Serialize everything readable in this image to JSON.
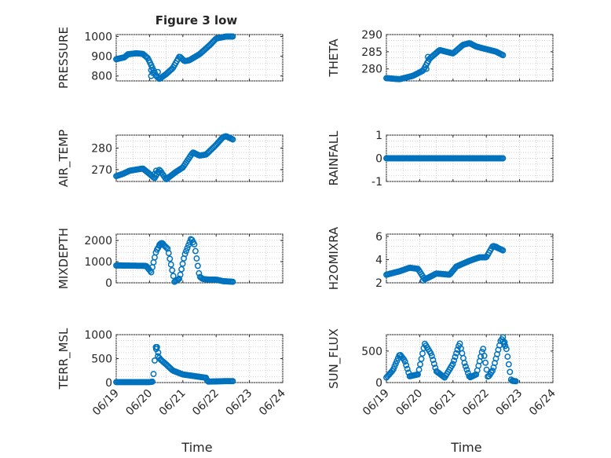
{
  "figure": {
    "title": "Figure 3 low",
    "marker_color": "#0072bd",
    "x_tick_labels": [
      "06/19",
      "06/20",
      "06/21",
      "06/22",
      "06/23",
      "06/24"
    ],
    "x_label": "Time"
  },
  "chart_data": [
    {
      "type": "scatter",
      "ylabel": "PRESSURE",
      "ylim": [
        775,
        1010
      ],
      "yticks": [
        800,
        900,
        1000
      ],
      "grid": true,
      "knots": [
        [
          0,
          885
        ],
        [
          0.25,
          895
        ],
        [
          0.35,
          910
        ],
        [
          0.6,
          915
        ],
        [
          0.8,
          912
        ],
        [
          0.95,
          890
        ],
        [
          1.05,
          855
        ],
        [
          1.2,
          800
        ],
        [
          1.3,
          785
        ],
        [
          1.5,
          810
        ],
        [
          1.7,
          840
        ],
        [
          1.9,
          900
        ],
        [
          2.05,
          875
        ],
        [
          2.2,
          880
        ],
        [
          2.5,
          910
        ],
        [
          2.8,
          955
        ],
        [
          3.0,
          990
        ],
        [
          3.3,
          1000
        ],
        [
          3.5,
          1000
        ]
      ],
      "extra": [
        [
          1.05,
          830
        ],
        [
          1.1,
          815
        ],
        [
          1.25,
          820
        ],
        [
          1.05,
          800
        ]
      ]
    },
    {
      "type": "scatter",
      "ylabel": "THETA",
      "ylim": [
        276.5,
        290
      ],
      "yticks": [
        280,
        285,
        290
      ],
      "grid": true,
      "knots": [
        [
          0,
          277.3
        ],
        [
          0.4,
          277
        ],
        [
          0.8,
          278
        ],
        [
          1.1,
          279.5
        ],
        [
          1.3,
          283
        ],
        [
          1.6,
          285.5
        ],
        [
          2.0,
          284.5
        ],
        [
          2.3,
          287
        ],
        [
          2.5,
          287.5
        ],
        [
          2.7,
          286.5
        ],
        [
          3.3,
          285
        ],
        [
          3.5,
          284
        ]
      ],
      "extra": [
        [
          1.2,
          280
        ],
        [
          1.25,
          283.5
        ]
      ]
    },
    {
      "type": "scatter",
      "ylabel": "AIR_TEMP",
      "ylim": [
        264.5,
        286
      ],
      "yticks": [
        270,
        280
      ],
      "grid": true,
      "knots": [
        [
          0,
          267
        ],
        [
          0.2,
          268
        ],
        [
          0.4,
          269.5
        ],
        [
          0.8,
          270.5
        ],
        [
          1.0,
          268
        ],
        [
          1.15,
          266
        ],
        [
          1.3,
          270
        ],
        [
          1.5,
          265.5
        ],
        [
          1.8,
          269
        ],
        [
          2.0,
          271
        ],
        [
          2.3,
          278
        ],
        [
          2.5,
          276.5
        ],
        [
          2.7,
          277
        ],
        [
          3.0,
          281.5
        ],
        [
          3.2,
          285
        ],
        [
          3.3,
          285.5
        ],
        [
          3.5,
          284
        ]
      ],
      "extra": [
        [
          1.15,
          268
        ],
        [
          1.2,
          269.5
        ]
      ]
    },
    {
      "type": "scatter",
      "ylabel": "RAINFALL",
      "ylim": [
        -1,
        1
      ],
      "yticks": [
        -1,
        0,
        1
      ],
      "grid": true,
      "knots": [
        [
          0,
          0
        ],
        [
          3.5,
          0
        ]
      ],
      "extra": []
    },
    {
      "type": "scatter",
      "ylabel": "MIXDEPTH",
      "ylim": [
        0,
        2300
      ],
      "yticks": [
        0,
        1000,
        2000
      ],
      "grid": true,
      "knots": [
        [
          0,
          820
        ],
        [
          0.9,
          800
        ],
        [
          1.05,
          500
        ],
        [
          1.2,
          1500
        ],
        [
          1.35,
          1900
        ],
        [
          1.55,
          1600
        ],
        [
          1.75,
          50
        ],
        [
          1.9,
          200
        ],
        [
          2.05,
          1300
        ],
        [
          2.25,
          2100
        ],
        [
          2.35,
          1800
        ],
        [
          2.5,
          300
        ],
        [
          2.6,
          180
        ],
        [
          2.8,
          150
        ],
        [
          3.0,
          150
        ],
        [
          3.2,
          80
        ],
        [
          3.5,
          50
        ]
      ],
      "extra": [
        [
          1.3,
          1800
        ],
        [
          1.4,
          1850
        ]
      ]
    },
    {
      "type": "scatter",
      "ylabel": "H2OMIXRA",
      "ylim": [
        2,
        6.2
      ],
      "yticks": [
        2,
        4,
        6
      ],
      "grid": true,
      "knots": [
        [
          0,
          2.7
        ],
        [
          0.4,
          3.0
        ],
        [
          0.7,
          3.3
        ],
        [
          0.95,
          3.2
        ],
        [
          1.15,
          2.3
        ],
        [
          1.3,
          2.5
        ],
        [
          1.5,
          2.8
        ],
        [
          1.9,
          2.7
        ],
        [
          2.1,
          3.4
        ],
        [
          2.5,
          3.9
        ],
        [
          2.8,
          4.2
        ],
        [
          3.0,
          4.2
        ],
        [
          3.2,
          5.2
        ],
        [
          3.35,
          5.0
        ],
        [
          3.5,
          4.8
        ]
      ],
      "extra": [
        [
          1.1,
          2.2
        ],
        [
          3.3,
          5.1
        ]
      ]
    },
    {
      "type": "scatter",
      "ylabel": "TERR_MSL",
      "ylim": [
        0,
        1000
      ],
      "yticks": [
        0,
        500,
        1000
      ],
      "grid": true,
      "knots": [
        [
          0,
          10
        ],
        [
          1.0,
          10
        ],
        [
          1.1,
          20
        ],
        [
          1.2,
          820
        ],
        [
          1.3,
          500
        ],
        [
          1.5,
          380
        ],
        [
          1.7,
          250
        ],
        [
          2.0,
          170
        ],
        [
          2.5,
          120
        ],
        [
          2.7,
          100
        ],
        [
          2.75,
          20
        ],
        [
          3.3,
          30
        ],
        [
          3.5,
          30
        ]
      ],
      "extra": [
        [
          1.2,
          700
        ],
        [
          1.25,
          550
        ]
      ]
    },
    {
      "type": "scatter",
      "ylabel": "SUN_FLUX",
      "ylim": [
        0,
        760
      ],
      "yticks": [
        0,
        500
      ],
      "grid": true,
      "knots": [
        [
          0,
          80
        ],
        [
          0.2,
          200
        ],
        [
          0.4,
          450
        ],
        [
          0.55,
          350
        ],
        [
          0.7,
          100
        ],
        [
          0.95,
          130
        ],
        [
          1.15,
          620
        ],
        [
          1.35,
          450
        ],
        [
          1.5,
          180
        ],
        [
          1.75,
          80
        ],
        [
          2.0,
          300
        ],
        [
          2.2,
          630
        ],
        [
          2.35,
          300
        ],
        [
          2.5,
          80
        ],
        [
          2.7,
          130
        ],
        [
          2.9,
          550
        ],
        [
          3.05,
          80
        ],
        [
          3.2,
          200
        ],
        [
          3.45,
          700
        ],
        [
          3.6,
          550
        ],
        [
          3.75,
          30
        ],
        [
          3.9,
          20
        ]
      ],
      "extra": [
        [
          3.5,
          720
        ],
        [
          3.55,
          640
        ]
      ]
    }
  ]
}
